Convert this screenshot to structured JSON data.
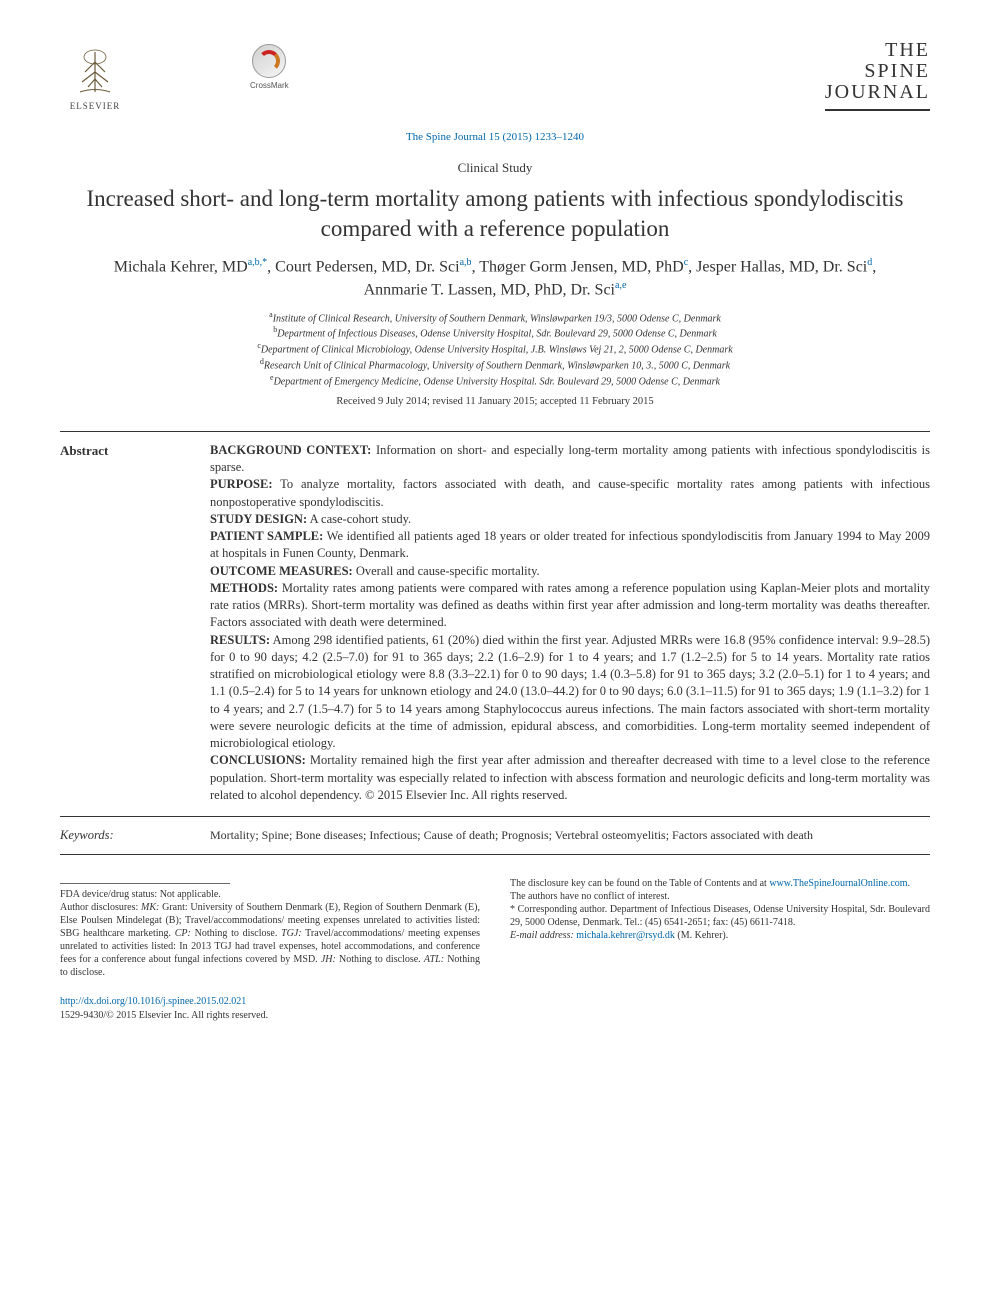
{
  "header": {
    "publisher_name": "ELSEVIER",
    "crossmark_label": "CrossMark",
    "journal_logo_lines": [
      "THE",
      "SPINE",
      "JOURNAL"
    ],
    "journal_ref": "The Spine Journal 15 (2015) 1233–1240"
  },
  "article": {
    "type": "Clinical Study",
    "title": "Increased short- and long-term mortality among patients with infectious spondylodiscitis compared with a reference population",
    "authors_html": "Michala Kehrer, MD<sup>a,b,*</sup>, Court Pedersen, MD, Dr. Sci<sup>a,b</sup>, Thøger Gorm Jensen, MD, PhD<sup>c</sup>, Jesper Hallas, MD, Dr. Sci<sup>d</sup>, Annmarie T. Lassen, MD, PhD, Dr. Sci<sup>a,e</sup>",
    "affiliations": [
      "Institute of Clinical Research, University of Southern Denmark, Winsløwparken 19/3, 5000 Odense C, Denmark",
      "Department of Infectious Diseases, Odense University Hospital, Sdr. Boulevard 29, 5000 Odense C, Denmark",
      "Department of Clinical Microbiology, Odense University Hospital, J.B. Winsløws Vej 21, 2, 5000 Odense C, Denmark",
      "Research Unit of Clinical Pharmacology, University of Southern Denmark, Winsløwparken 10, 3., 5000 C, Denmark",
      "Department of Emergency Medicine, Odense University Hospital. Sdr. Boulevard 29, 5000 Odense C, Denmark"
    ],
    "aff_letters": [
      "a",
      "b",
      "c",
      "d",
      "e"
    ],
    "dates": "Received 9 July 2014; revised 11 January 2015; accepted 11 February 2015"
  },
  "abstract": {
    "label": "Abstract",
    "sections": {
      "background_label": "BACKGROUND CONTEXT:",
      "background": " Information on short- and especially long-term mortality among patients with infectious spondylodiscitis is sparse.",
      "purpose_label": "PURPOSE:",
      "purpose": " To analyze mortality, factors associated with death, and cause-specific mortality rates among patients with infectious nonpostoperative spondylodiscitis.",
      "design_label": "STUDY DESIGN:",
      "design": " A case-cohort study.",
      "sample_label": "PATIENT SAMPLE:",
      "sample": " We identified all patients aged 18 years or older treated for infectious spondylodiscitis from January 1994 to May 2009 at hospitals in Funen County, Denmark.",
      "outcome_label": "OUTCOME MEASURES:",
      "outcome": " Overall and cause-specific mortality.",
      "methods_label": "METHODS:",
      "methods": " Mortality rates among patients were compared with rates among a reference population using Kaplan-Meier plots and mortality rate ratios (MRRs). Short-term mortality was defined as deaths within first year after admission and long-term mortality was deaths thereafter. Factors associated with death were determined.",
      "results_label": "RESULTS:",
      "results": " Among 298 identified patients, 61 (20%) died within the first year. Adjusted MRRs were 16.8 (95% confidence interval: 9.9–28.5) for 0 to 90 days; 4.2 (2.5–7.0) for 91 to 365 days; 2.2 (1.6–2.9) for 1 to 4 years; and 1.7 (1.2–2.5) for 5 to 14 years. Mortality rate ratios stratified on microbiological etiology were 8.8 (3.3–22.1) for 0 to 90 days; 1.4 (0.3–5.8) for 91 to 365 days; 3.2 (2.0–5.1) for 1 to 4 years; and 1.1 (0.5–2.4) for 5 to 14 years for unknown etiology and 24.0 (13.0–44.2) for 0 to 90 days; 6.0 (3.1–11.5) for 91 to 365 days; 1.9 (1.1–3.2) for 1 to 4 years; and 2.7 (1.5–4.7) for 5 to 14 years among Staphylococcus aureus infections. The main factors associated with short-term mortality were severe neurologic deficits at the time of admission, epidural abscess, and comorbidities. Long-term mortality seemed independent of microbiological etiology.",
      "conclusions_label": "CONCLUSIONS:",
      "conclusions": " Mortality remained high the first year after admission and thereafter decreased with time to a level close to the reference population. Short-term mortality was especially related to infection with abscess formation and neurologic deficits and long-term mortality was related to alcohol dependency.  © 2015 Elsevier Inc. All rights reserved."
    }
  },
  "keywords": {
    "label": "Keywords:",
    "text": "Mortality; Spine; Bone diseases; Infectious; Cause of death; Prognosis; Vertebral osteomyelitis; Factors associated with death"
  },
  "footer": {
    "fda": "FDA device/drug status: Not applicable.",
    "disclosures": "Author disclosures: MK: Grant: University of Southern Denmark (E), Region of Southern Denmark (E), Else Poulsen Mindelegat (B); Travel/accommodations/ meeting expenses unrelated to activities listed: SBG healthcare marketing. CP: Nothing to disclose. TGJ: Travel/accommodations/ meeting expenses unrelated to activities listed: In 2013 TGJ had travel expenses, hotel accommodations, and conference fees for a conference about fungal infections covered by MSD. JH: Nothing to disclose. ATL: Nothing to disclose.",
    "disclosure_key_1": "The disclosure key can be found on the Table of Contents and at ",
    "disclosure_link": "www.TheSpineJournalOnline.com",
    "disclosure_key_2": ".",
    "conflict": "The authors have no conflict of interest.",
    "corresponding": "* Corresponding author. Department of Infectious Diseases, Odense University Hospital, Sdr. Boulevard 29, 5000 Odense, Denmark. Tel.: (45) 6541-2651; fax: (45) 6611-7418.",
    "email_label": "E-mail address: ",
    "email": "michala.kehrer@rsyd.dk",
    "email_suffix": " (M. Kehrer).",
    "doi": "http://dx.doi.org/10.1016/j.spinee.2015.02.021",
    "issn_copy": "1529-9430/© 2015 Elsevier Inc. All rights reserved."
  },
  "colors": {
    "link": "#0066aa",
    "text": "#333333",
    "rule": "#333333",
    "background": "#ffffff"
  },
  "typography": {
    "body_family": "Times New Roman",
    "body_size_pt": 10,
    "title_size_pt": 18,
    "authors_size_pt": 13,
    "aff_size_pt": 8,
    "footer_size_pt": 8
  }
}
